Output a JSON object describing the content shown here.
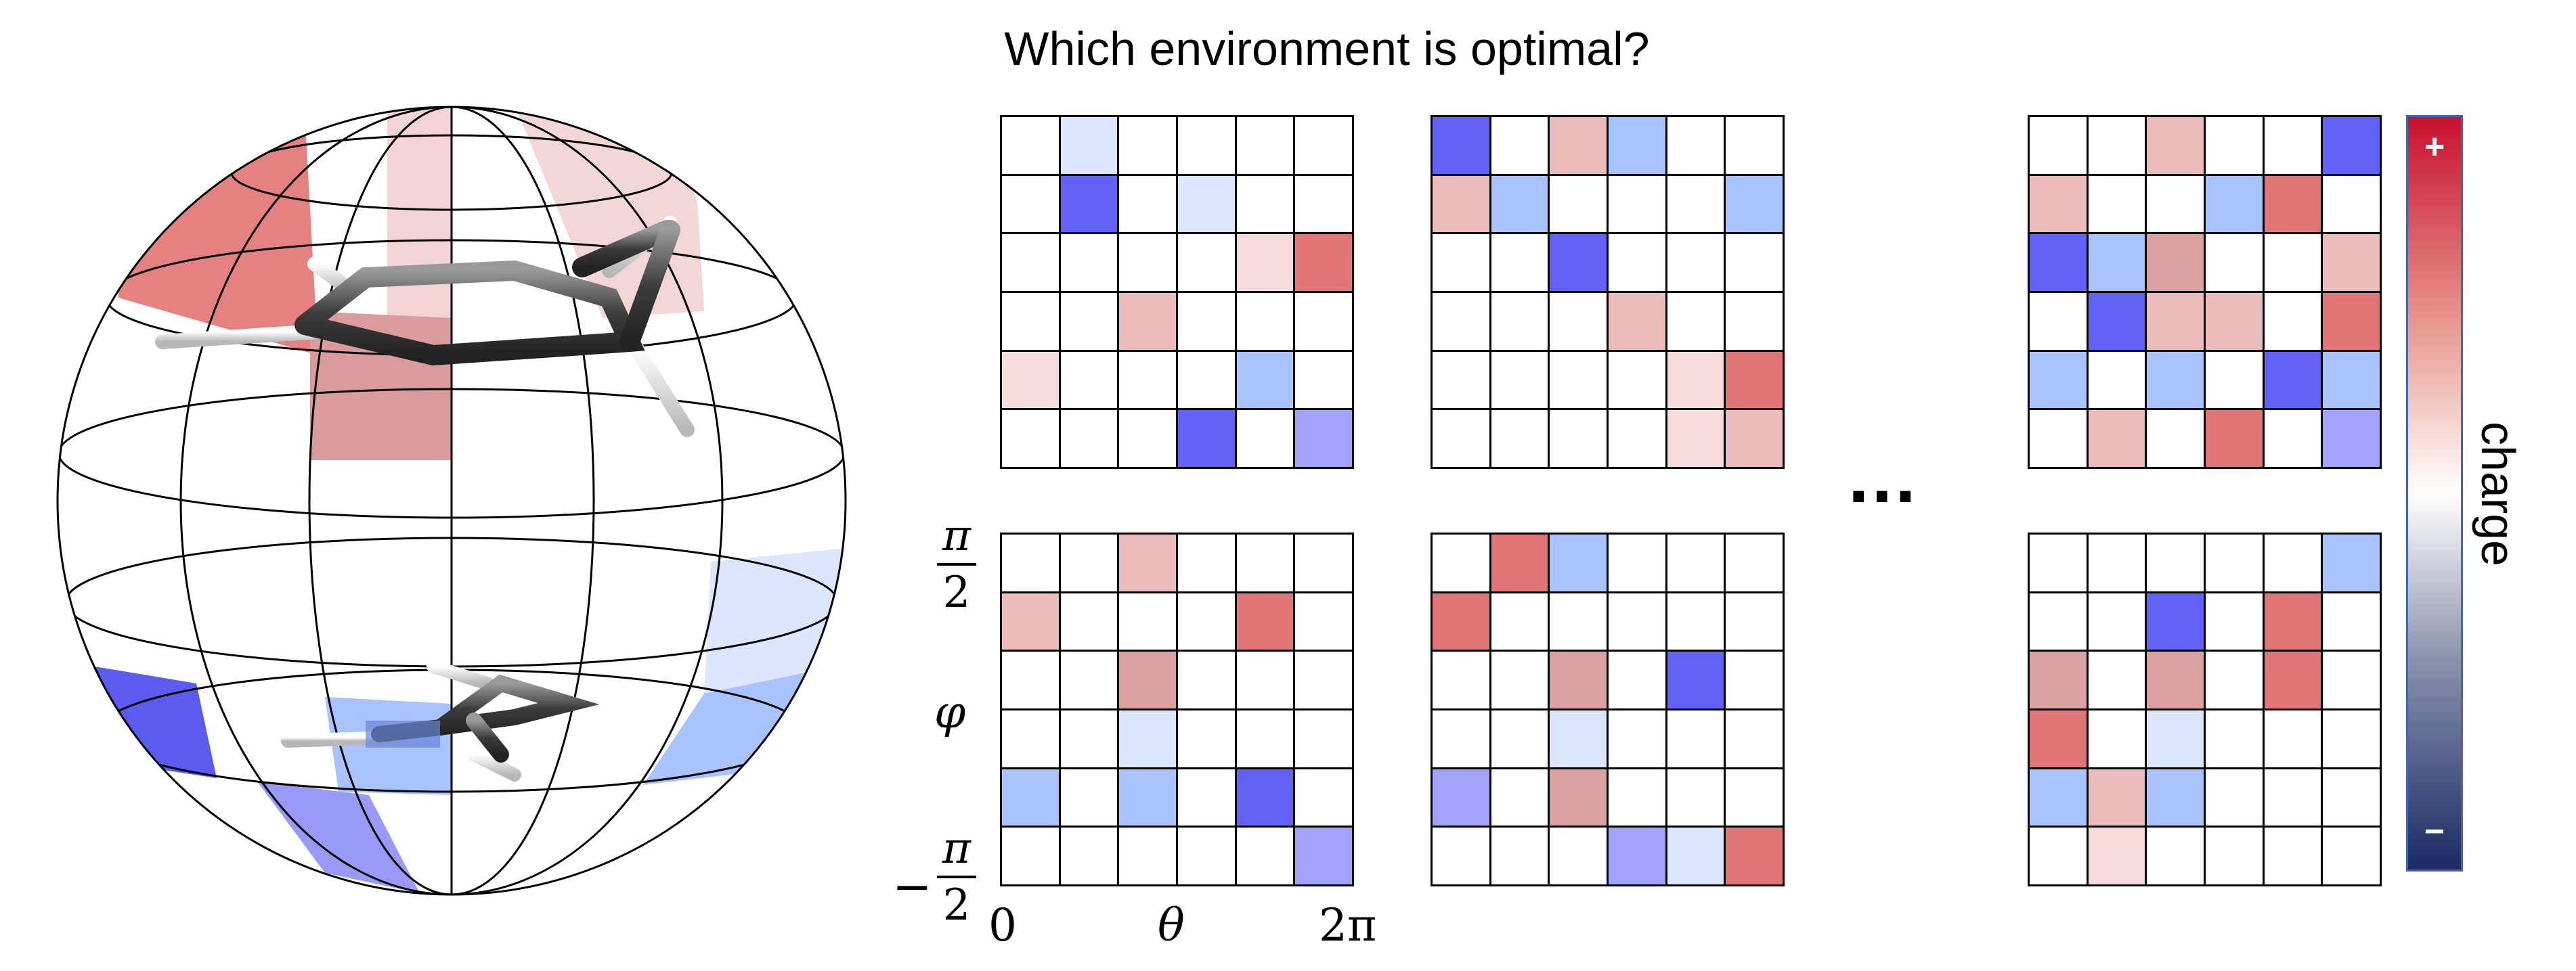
{
  "title": "Which environment is optimal?",
  "ellipsis": "...",
  "axis": {
    "phi_top_num": "π",
    "phi_top_den": "2",
    "phi_mid": "φ",
    "phi_bottom_sign": "−",
    "phi_bottom_num": "π",
    "phi_bottom_den": "2",
    "theta_start": "0",
    "theta_mid": "θ",
    "theta_end": "2π"
  },
  "colorbar": {
    "label": "charge",
    "plus": "+",
    "minus": "−",
    "max_color": "#c8102e",
    "min_color": "#1b2a66"
  },
  "palette": {
    "0": "#ffffff",
    "1": "#f6dcdc",
    "2": "#ecbcbc",
    "3": "#e07676",
    "4": "#dba0a0",
    "-1": "#dde6ff",
    "-2": "#a9c3ff",
    "-3": "#6262f8",
    "-4": "#a2a2fa"
  },
  "grids": [
    {
      "name": "top-1",
      "cells": [
        [
          0,
          -1,
          0,
          0,
          0,
          0
        ],
        [
          0,
          -3,
          0,
          -1,
          0,
          0
        ],
        [
          0,
          0,
          0,
          0,
          1,
          3
        ],
        [
          0,
          0,
          2,
          0,
          0,
          0
        ],
        [
          1,
          0,
          0,
          0,
          -2,
          0
        ],
        [
          0,
          0,
          0,
          -3,
          0,
          -4
        ]
      ]
    },
    {
      "name": "top-2",
      "cells": [
        [
          -3,
          0,
          2,
          -2,
          0,
          0
        ],
        [
          2,
          -2,
          0,
          0,
          0,
          -2
        ],
        [
          0,
          0,
          -3,
          0,
          0,
          0
        ],
        [
          0,
          0,
          0,
          2,
          0,
          0
        ],
        [
          0,
          0,
          0,
          0,
          1,
          3
        ],
        [
          0,
          0,
          0,
          0,
          1,
          2
        ]
      ]
    },
    {
      "name": "top-3",
      "cells": [
        [
          0,
          0,
          2,
          0,
          0,
          -3
        ],
        [
          2,
          0,
          0,
          -2,
          3,
          0
        ],
        [
          -3,
          -2,
          4,
          0,
          0,
          2
        ],
        [
          0,
          -3,
          2,
          2,
          0,
          3
        ],
        [
          -2,
          0,
          -2,
          0,
          -3,
          -2
        ],
        [
          0,
          2,
          0,
          3,
          0,
          -4
        ]
      ]
    },
    {
      "name": "bottom-1",
      "cells": [
        [
          0,
          0,
          2,
          0,
          0,
          0
        ],
        [
          2,
          0,
          0,
          0,
          3,
          0
        ],
        [
          0,
          0,
          4,
          0,
          0,
          0
        ],
        [
          0,
          0,
          -1,
          0,
          0,
          0
        ],
        [
          -2,
          0,
          -2,
          0,
          -3,
          0
        ],
        [
          0,
          0,
          0,
          0,
          0,
          -4
        ]
      ]
    },
    {
      "name": "bottom-2",
      "cells": [
        [
          0,
          3,
          -2,
          0,
          0,
          0
        ],
        [
          3,
          0,
          0,
          0,
          0,
          0
        ],
        [
          0,
          0,
          4,
          0,
          -3,
          0
        ],
        [
          0,
          0,
          -1,
          0,
          0,
          0
        ],
        [
          -4,
          0,
          4,
          0,
          0,
          0
        ],
        [
          0,
          0,
          0,
          -4,
          -1,
          3
        ]
      ]
    },
    {
      "name": "bottom-3",
      "cells": [
        [
          0,
          0,
          0,
          0,
          0,
          -2
        ],
        [
          0,
          0,
          -3,
          0,
          3,
          0
        ],
        [
          4,
          0,
          4,
          0,
          3,
          0
        ],
        [
          3,
          0,
          -1,
          0,
          0,
          0
        ],
        [
          -2,
          2,
          -2,
          0,
          0,
          0
        ],
        [
          0,
          1,
          0,
          0,
          0,
          0
        ]
      ]
    }
  ]
}
